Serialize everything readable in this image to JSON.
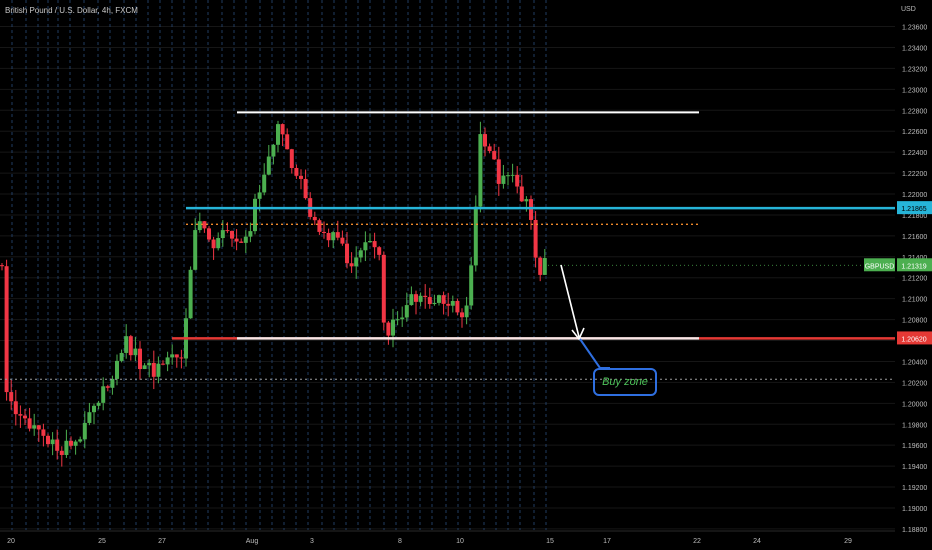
{
  "header": {
    "title": "British Pound / U.S. Dollar, 4h, FXCM",
    "currency": "USD"
  },
  "chart_data": {
    "type": "candlestick",
    "symbol": "GBPUSD",
    "current_price": "1.21319",
    "y_axis": {
      "ticks": [
        "1.23600",
        "1.23400",
        "1.23200",
        "1.23000",
        "1.22800",
        "1.22600",
        "1.22400",
        "1.22200",
        "1.22000",
        "1.21800",
        "1.21600",
        "1.21400",
        "1.21200",
        "1.21000",
        "1.20800",
        "1.20600",
        "1.20400",
        "1.20200",
        "1.20000",
        "1.19800",
        "1.19600",
        "1.19400",
        "1.19200",
        "1.19000",
        "1.18800"
      ],
      "range": [
        1.1878,
        1.2372
      ]
    },
    "x_axis": {
      "ticks": [
        "20",
        "25",
        "27",
        "Aug",
        "3",
        "8",
        "10",
        "15",
        "17",
        "22",
        "24",
        "29"
      ]
    },
    "levels": [
      {
        "name": "resistance",
        "price": 1.2278,
        "color": "#ffffff"
      },
      {
        "name": "cyan-level",
        "price": 1.21865,
        "color": "#26b4d8",
        "label": "1.21865"
      },
      {
        "name": "orange-dotted",
        "price": 1.2171,
        "color": "#f0892a"
      },
      {
        "name": "support",
        "price": 1.2062,
        "color": "#e53935",
        "label": "1.20620"
      },
      {
        "name": "lower-dotted",
        "price": 1.2023,
        "color": "#9e9e9e"
      }
    ],
    "annotations": {
      "price_tag_label": "GBPUSD",
      "buy_zone": "Buy zone"
    },
    "colors": {
      "up": "#4caf50",
      "down": "#f23645",
      "background": "#000000"
    }
  }
}
